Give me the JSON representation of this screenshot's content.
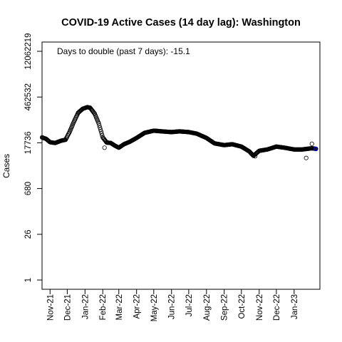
{
  "chart_data": {
    "type": "scatter",
    "title": "COVID-19 Active Cases (14 day lag): Washington",
    "annotation": "Days to double (past 7 days): -15.1",
    "xlabel": "",
    "ylabel": "Cases",
    "y_scale": "log",
    "ylim": [
      1,
      12062219
    ],
    "xlim": [
      "2021-10-18",
      "2023-02-15"
    ],
    "y_ticks": [
      1,
      26,
      680,
      17736,
      462532,
      12062219
    ],
    "y_tick_labels": [
      "1",
      "26",
      "680",
      "17736",
      "462532",
      "12062219"
    ],
    "x_ticks": [
      "2021-11-01",
      "2021-12-01",
      "2022-01-01",
      "2022-02-01",
      "2022-03-01",
      "2022-04-01",
      "2022-05-01",
      "2022-06-01",
      "2022-07-01",
      "2022-08-01",
      "2022-09-01",
      "2022-10-01",
      "2022-11-01",
      "2022-12-01",
      "2023-01-01"
    ],
    "x_tick_labels": [
      "Nov-21",
      "Dec-21",
      "Jan-22",
      "Feb-22",
      "Mar-22",
      "Apr-22",
      "May-22",
      "Jun-22",
      "Jul-22",
      "Aug-22",
      "Sep-22",
      "Oct-22",
      "Nov-22",
      "Dec-22",
      "Jan-23"
    ],
    "grid": false,
    "marker": "open-circle",
    "highlight_color": "#0000ff",
    "series": [
      {
        "anchors": [
          [
            "2021-10-18",
            26000
          ],
          [
            "2021-10-25",
            23500
          ],
          [
            "2021-11-01",
            18500
          ],
          [
            "2021-11-10",
            17500
          ],
          [
            "2021-11-20",
            20500
          ],
          [
            "2021-11-28",
            22000
          ],
          [
            "2021-12-05",
            38000
          ],
          [
            "2021-12-12",
            75000
          ],
          [
            "2021-12-20",
            150000
          ],
          [
            "2021-12-28",
            200000
          ],
          [
            "2022-01-05",
            225000
          ],
          [
            "2022-01-10",
            215000
          ],
          [
            "2022-01-18",
            140000
          ],
          [
            "2022-01-25",
            70000
          ],
          [
            "2022-02-01",
            26000
          ],
          [
            "2022-02-08",
            18000
          ],
          [
            "2022-02-15",
            17500
          ],
          [
            "2022-02-22",
            14500
          ],
          [
            "2022-03-01",
            12500
          ],
          [
            "2022-03-10",
            16000
          ],
          [
            "2022-03-20",
            19000
          ],
          [
            "2022-04-01",
            25000
          ],
          [
            "2022-04-15",
            36000
          ],
          [
            "2022-05-01",
            42000
          ],
          [
            "2022-05-15",
            40000
          ],
          [
            "2022-06-01",
            38000
          ],
          [
            "2022-06-15",
            40000
          ],
          [
            "2022-07-01",
            38000
          ],
          [
            "2022-07-15",
            34000
          ],
          [
            "2022-08-01",
            25000
          ],
          [
            "2022-08-15",
            17000
          ],
          [
            "2022-09-01",
            15000
          ],
          [
            "2022-09-15",
            16000
          ],
          [
            "2022-10-01",
            13500
          ],
          [
            "2022-10-15",
            9500
          ],
          [
            "2022-10-22",
            7000
          ],
          [
            "2022-11-01",
            10000
          ],
          [
            "2022-11-15",
            11000
          ],
          [
            "2022-12-01",
            13500
          ],
          [
            "2022-12-15",
            12500
          ],
          [
            "2023-01-01",
            11000
          ],
          [
            "2023-01-15",
            11000
          ],
          [
            "2023-02-01",
            12000
          ],
          [
            "2023-02-08",
            11500
          ]
        ],
        "outliers": [
          [
            "2022-02-04",
            12500
          ],
          [
            "2022-10-25",
            6800
          ],
          [
            "2023-01-22",
            6000
          ],
          [
            "2023-02-01",
            16500
          ]
        ]
      }
    ]
  }
}
